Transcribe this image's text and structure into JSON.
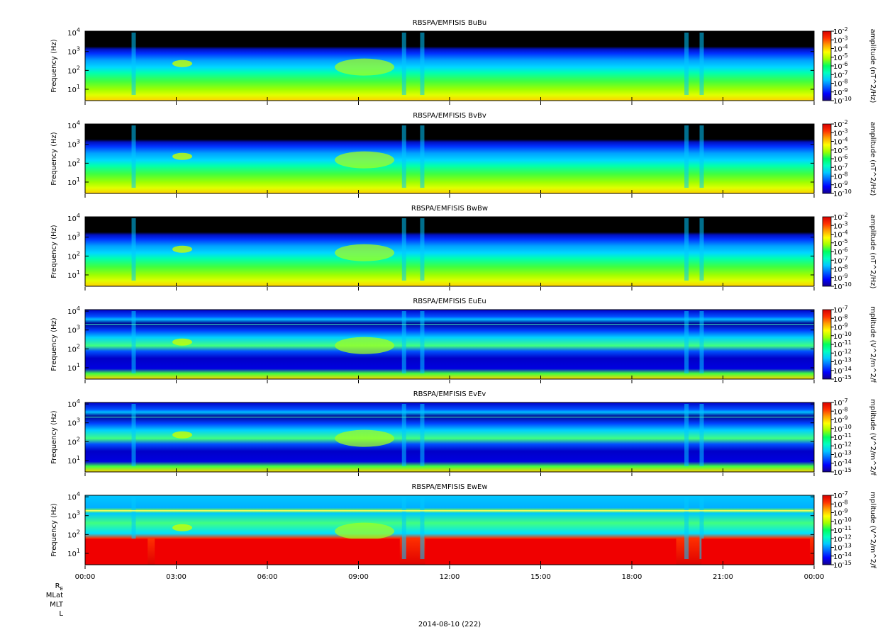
{
  "figure": {
    "date_label": "2014-08-10 (222)",
    "ephemeris_labels": [
      "R_E",
      "MLat",
      "MLT",
      "L"
    ]
  },
  "colorscale": [
    "#000000",
    "#14008c",
    "#0000ff",
    "#0064ff",
    "#00c8ff",
    "#00ffc0",
    "#00ff60",
    "#a0ff00",
    "#ffff00",
    "#ffa000",
    "#ff3000",
    "#d80000"
  ],
  "chart_data": [
    {
      "type": "heatmap",
      "title": "RBSPA/EMFISIS  BuBu",
      "ylabel": "Frequency (Hz)",
      "yscale": "log",
      "ylim": [
        2.5,
        12000
      ],
      "yticks": [
        {
          "exp": "1",
          "value": 10
        },
        {
          "exp": "2",
          "value": 100
        },
        {
          "exp": "3",
          "value": 1000
        },
        {
          "exp": "4",
          "value": 10000
        }
      ],
      "x_ticks": [
        "00:00",
        "03:00",
        "06:00",
        "09:00",
        "12:00",
        "15:00",
        "18:00",
        "21:00",
        "00:00"
      ],
      "x_range_hours": [
        0,
        24
      ],
      "colorbar": {
        "label": "amplitude (nT^2/Hz)",
        "exponents": [
          "-2",
          "-3",
          "-4",
          "-5",
          "-6",
          "-7",
          "-8",
          "-9",
          "-10"
        ]
      }
    },
    {
      "type": "heatmap",
      "title": "RBSPA/EMFISIS  BvBv",
      "ylabel": "Frequency (Hz)",
      "yscale": "log",
      "ylim": [
        2.5,
        12000
      ],
      "yticks": [
        {
          "exp": "1",
          "value": 10
        },
        {
          "exp": "2",
          "value": 100
        },
        {
          "exp": "3",
          "value": 1000
        },
        {
          "exp": "4",
          "value": 10000
        }
      ],
      "x_ticks": [
        "00:00",
        "03:00",
        "06:00",
        "09:00",
        "12:00",
        "15:00",
        "18:00",
        "21:00",
        "00:00"
      ],
      "x_range_hours": [
        0,
        24
      ],
      "colorbar": {
        "label": "amplitude (nT^2/Hz)",
        "exponents": [
          "-2",
          "-3",
          "-4",
          "-5",
          "-6",
          "-7",
          "-8",
          "-9",
          "-10"
        ]
      }
    },
    {
      "type": "heatmap",
      "title": "RBSPA/EMFISIS  BwBw",
      "ylabel": "Frequency (Hz)",
      "yscale": "log",
      "ylim": [
        2.5,
        12000
      ],
      "yticks": [
        {
          "exp": "1",
          "value": 10
        },
        {
          "exp": "2",
          "value": 100
        },
        {
          "exp": "3",
          "value": 1000
        },
        {
          "exp": "4",
          "value": 10000
        }
      ],
      "x_ticks": [
        "00:00",
        "03:00",
        "06:00",
        "09:00",
        "12:00",
        "15:00",
        "18:00",
        "21:00",
        "00:00"
      ],
      "x_range_hours": [
        0,
        24
      ],
      "colorbar": {
        "label": "amplitude (nT^2/Hz)",
        "exponents": [
          "-2",
          "-3",
          "-4",
          "-5",
          "-6",
          "-7",
          "-8",
          "-9",
          "-10"
        ]
      }
    },
    {
      "type": "heatmap",
      "title": "RBSPA/EMFISIS  EuEu",
      "ylabel": "Frequency (Hz)",
      "yscale": "log",
      "ylim": [
        2.5,
        12000
      ],
      "yticks": [
        {
          "exp": "1",
          "value": 10
        },
        {
          "exp": "2",
          "value": 100
        },
        {
          "exp": "3",
          "value": 1000
        },
        {
          "exp": "4",
          "value": 10000
        }
      ],
      "x_ticks": [
        "00:00",
        "03:00",
        "06:00",
        "09:00",
        "12:00",
        "15:00",
        "18:00",
        "21:00",
        "00:00"
      ],
      "x_range_hours": [
        0,
        24
      ],
      "colorbar": {
        "label": "mplitude (V^2/m^2/f",
        "exponents": [
          "-7",
          "-8",
          "-9",
          "-10",
          "-11",
          "-12",
          "-13",
          "-14",
          "-15"
        ]
      }
    },
    {
      "type": "heatmap",
      "title": "RBSPA/EMFISIS  EvEv",
      "ylabel": "Frequency (Hz)",
      "yscale": "log",
      "ylim": [
        2.5,
        12000
      ],
      "yticks": [
        {
          "exp": "1",
          "value": 10
        },
        {
          "exp": "2",
          "value": 100
        },
        {
          "exp": "3",
          "value": 1000
        },
        {
          "exp": "4",
          "value": 10000
        }
      ],
      "x_ticks": [
        "00:00",
        "03:00",
        "06:00",
        "09:00",
        "12:00",
        "15:00",
        "18:00",
        "21:00",
        "00:00"
      ],
      "x_range_hours": [
        0,
        24
      ],
      "colorbar": {
        "label": "mplitude (V^2/m^2/f",
        "exponents": [
          "-7",
          "-8",
          "-9",
          "-10",
          "-11",
          "-12",
          "-13",
          "-14",
          "-15"
        ]
      }
    },
    {
      "type": "heatmap",
      "title": "RBSPA/EMFISIS  EwEw",
      "ylabel": "Frequency (Hz)",
      "yscale": "log",
      "ylim": [
        2.5,
        12000
      ],
      "yticks": [
        {
          "exp": "1",
          "value": 10
        },
        {
          "exp": "2",
          "value": 100
        },
        {
          "exp": "3",
          "value": 1000
        },
        {
          "exp": "4",
          "value": 10000
        }
      ],
      "x_ticks": [
        "00:00",
        "03:00",
        "06:00",
        "09:00",
        "12:00",
        "15:00",
        "18:00",
        "21:00",
        "00:00"
      ],
      "x_range_hours": [
        0,
        24
      ],
      "colorbar": {
        "label": "mplitude (V^2/m^2/f",
        "exponents": [
          "-7",
          "-8",
          "-9",
          "-10",
          "-11",
          "-12",
          "-13",
          "-14",
          "-15"
        ]
      }
    }
  ]
}
